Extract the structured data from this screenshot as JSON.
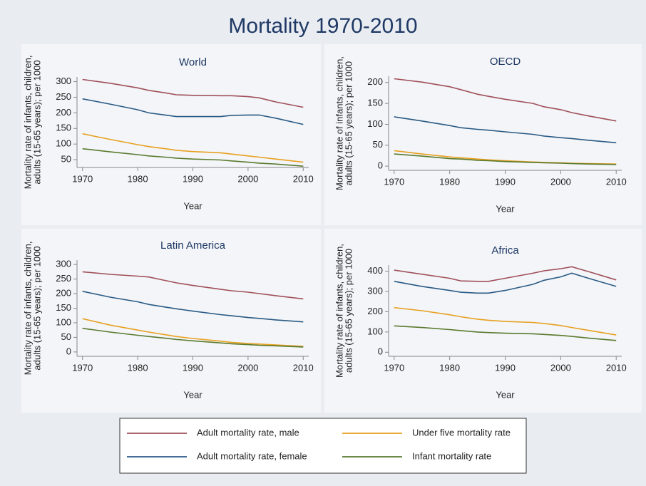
{
  "title": "Mortality 1970-2010",
  "chart_data": [
    {
      "type": "line",
      "title": "World",
      "ylabel": [
        "Mortality rate of infants, children,",
        "adults (15-65 years); per 1000"
      ],
      "xlabel": "Year",
      "x": [
        1970,
        1975,
        1980,
        1982,
        1985,
        1987,
        1990,
        1995,
        1997,
        2000,
        2002,
        2005,
        2010
      ],
      "xlim": [
        1969,
        2011
      ],
      "xticks": [
        1970,
        1980,
        1990,
        2000,
        2010
      ],
      "ylim": [
        25,
        315
      ],
      "yticks": [
        50,
        100,
        150,
        200,
        250,
        300
      ],
      "series": [
        {
          "name": "Adult mortality rate, male",
          "color": "#a0505a",
          "values": [
            307,
            295,
            280,
            272,
            264,
            258,
            256,
            255,
            255,
            252,
            248,
            235,
            218
          ]
        },
        {
          "name": "Adult mortality rate, female",
          "color": "#2a5a84",
          "values": [
            245,
            228,
            210,
            200,
            193,
            188,
            188,
            188,
            192,
            193,
            193,
            183,
            163
          ]
        },
        {
          "name": "Under five mortality rate",
          "color": "#e8a020",
          "values": [
            133,
            115,
            98,
            92,
            85,
            80,
            76,
            72,
            68,
            62,
            58,
            52,
            42
          ]
        },
        {
          "name": "Infant mortality rate",
          "color": "#5a7a2e",
          "values": [
            85,
            75,
            66,
            62,
            58,
            55,
            52,
            49,
            46,
            42,
            39,
            36,
            29
          ]
        }
      ]
    },
    {
      "type": "line",
      "title": "OECD",
      "ylabel": [
        "Mortality rate of infants, children,",
        "adults (15-65 years); per 1000"
      ],
      "xlabel": "Year",
      "x": [
        1970,
        1975,
        1980,
        1982,
        1985,
        1987,
        1990,
        1995,
        1997,
        2000,
        2002,
        2005,
        2010
      ],
      "xlim": [
        1969,
        2011
      ],
      "xticks": [
        1970,
        1980,
        1990,
        2000,
        2010
      ],
      "ylim": [
        -10,
        215
      ],
      "yticks": [
        0,
        50,
        100,
        150,
        200
      ],
      "series": [
        {
          "color": "#a0505a",
          "values": [
            209,
            201,
            190,
            183,
            172,
            167,
            160,
            150,
            142,
            135,
            128,
            120,
            108
          ]
        },
        {
          "color": "#2a5a84",
          "values": [
            118,
            108,
            97,
            92,
            88,
            86,
            82,
            76,
            72,
            68,
            66,
            62,
            56
          ]
        },
        {
          "color": "#e8a020",
          "values": [
            37,
            29,
            22,
            20,
            17,
            15,
            13,
            10,
            9,
            8,
            7,
            6,
            5
          ]
        },
        {
          "color": "#5a7a2e",
          "values": [
            29,
            24,
            18,
            17,
            14,
            13,
            11,
            9,
            8,
            7,
            6,
            5,
            4
          ]
        }
      ]
    },
    {
      "type": "line",
      "title": "Latin America",
      "ylabel": [
        "Mortality rate of infants, children,",
        "adults (15-65 years); per 1000"
      ],
      "xlabel": "Year",
      "x": [
        1970,
        1975,
        1980,
        1982,
        1985,
        1987,
        1990,
        1995,
        1997,
        2000,
        2002,
        2005,
        2010
      ],
      "xlim": [
        1969,
        2011
      ],
      "xticks": [
        1970,
        1980,
        1990,
        2000,
        2010
      ],
      "ylim": [
        -15,
        315
      ],
      "yticks": [
        0,
        50,
        100,
        150,
        200,
        250,
        300
      ],
      "series": [
        {
          "color": "#a0505a",
          "values": [
            275,
            266,
            260,
            257,
            245,
            237,
            228,
            215,
            210,
            205,
            200,
            193,
            182
          ]
        },
        {
          "color": "#2a5a84",
          "values": [
            208,
            188,
            172,
            163,
            154,
            148,
            140,
            128,
            124,
            118,
            115,
            110,
            103
          ]
        },
        {
          "color": "#e8a020",
          "values": [
            114,
            92,
            75,
            68,
            59,
            53,
            46,
            37,
            33,
            29,
            27,
            24,
            19
          ]
        },
        {
          "color": "#5a7a2e",
          "values": [
            81,
            68,
            57,
            53,
            47,
            43,
            38,
            31,
            28,
            25,
            23,
            21,
            17
          ]
        }
      ]
    },
    {
      "type": "line",
      "title": "Africa",
      "ylabel": [
        "Mortality rate of infants, children,",
        "adults (15-65 years); per 1000"
      ],
      "xlabel": "Year",
      "x": [
        1970,
        1975,
        1980,
        1982,
        1985,
        1987,
        1990,
        1995,
        1997,
        2000,
        2002,
        2005,
        2010
      ],
      "xlim": [
        1969,
        2011
      ],
      "xticks": [
        1970,
        1980,
        1990,
        2000,
        2010
      ],
      "ylim": [
        -20,
        430
      ],
      "yticks": [
        0,
        100,
        200,
        300,
        400
      ],
      "series": [
        {
          "color": "#a0505a",
          "values": [
            405,
            385,
            365,
            352,
            350,
            350,
            365,
            390,
            402,
            412,
            422,
            398,
            357
          ]
        },
        {
          "color": "#2a5a84",
          "values": [
            350,
            325,
            305,
            296,
            292,
            292,
            305,
            335,
            355,
            372,
            390,
            365,
            325
          ]
        },
        {
          "color": "#e8a020",
          "values": [
            220,
            205,
            185,
            175,
            163,
            158,
            152,
            147,
            142,
            132,
            122,
            108,
            85
          ]
        },
        {
          "color": "#5a7a2e",
          "values": [
            130,
            122,
            112,
            107,
            100,
            97,
            94,
            91,
            88,
            83,
            78,
            70,
            58
          ]
        }
      ]
    }
  ]
}
